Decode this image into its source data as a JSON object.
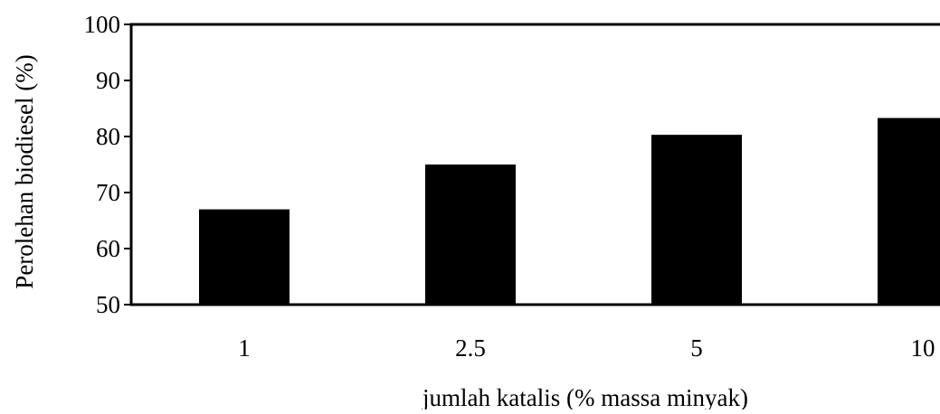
{
  "chart_data": {
    "type": "bar",
    "categories": [
      "1",
      "2.5",
      "5",
      "10"
    ],
    "values": [
      67,
      75,
      80.3,
      83.3
    ],
    "xlabel": "jumlah katalis (% massa minyak)",
    "ylabel": "Perolehan biodiesel (%)",
    "ylim": [
      50,
      100
    ],
    "yticks": [
      "50",
      "60",
      "70",
      "80",
      "90",
      "100"
    ],
    "grid": false,
    "legend": "none",
    "colors": {
      "bar": "#000000",
      "axis": "#000000",
      "background": "#ffffff"
    }
  }
}
